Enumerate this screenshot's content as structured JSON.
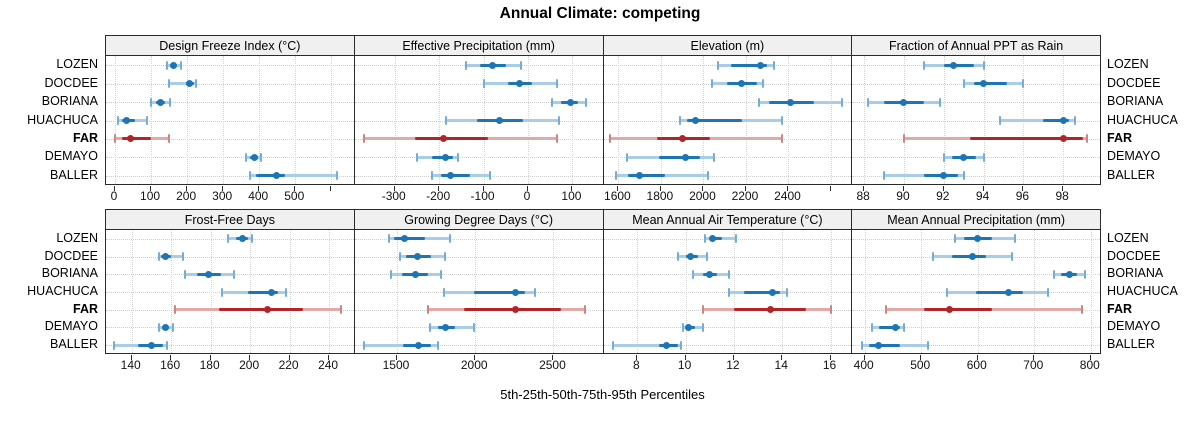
{
  "title": "Annual Climate: competing",
  "caption": "5th-25th-50th-75th-95th Percentiles",
  "percentile_labels": [
    "5th",
    "25th",
    "50th",
    "75th",
    "95th"
  ],
  "sites": [
    {
      "name": "LOZEN",
      "emphasis": false
    },
    {
      "name": "DOCDEE",
      "emphasis": false
    },
    {
      "name": "BORIANA",
      "emphasis": false
    },
    {
      "name": "HUACHUCA",
      "emphasis": false
    },
    {
      "name": "FAR",
      "emphasis": true
    },
    {
      "name": "DEMAYO",
      "emphasis": false
    },
    {
      "name": "BALLER",
      "emphasis": false
    }
  ],
  "colors": {
    "series_dark": "#1c75b4",
    "series_light": "#a9cde6",
    "series_cap": "#74aed8",
    "far_dark": "#b22428",
    "far_light": "#e2a9a9",
    "far_cap": "#d08383",
    "grid": "#d4d4d4",
    "strip_bg": "#f0f0f0",
    "panel_border": "#2b2b2b"
  },
  "chart_data": [
    {
      "type": "dot-interval",
      "title": "Design Freeze Index (°C)",
      "xlim": [
        -25,
        665
      ],
      "ticks": [
        0,
        100,
        200,
        300,
        400,
        500,
        600
      ],
      "tick_labels": [
        "0",
        "100",
        "200",
        "300",
        "400",
        "500",
        ""
      ],
      "series": [
        {
          "name": "LOZEN",
          "values": [
            145,
            153,
            162,
            171,
            182
          ]
        },
        {
          "name": "DOCDEE",
          "values": [
            150,
            196,
            208,
            220,
            226
          ]
        },
        {
          "name": "BORIANA",
          "values": [
            100,
            115,
            125,
            138,
            152
          ]
        },
        {
          "name": "HUACHUCA",
          "values": [
            8,
            18,
            33,
            55,
            90
          ]
        },
        {
          "name": "FAR",
          "values": [
            0,
            18,
            42,
            100,
            150
          ]
        },
        {
          "name": "DEMAYO",
          "values": [
            364,
            374,
            386,
            396,
            404
          ]
        },
        {
          "name": "BALLER",
          "values": [
            375,
            392,
            447,
            472,
            617
          ]
        }
      ]
    },
    {
      "type": "dot-interval",
      "title": "Effective Precipitation (mm)",
      "xlim": [
        -390,
        170
      ],
      "ticks": [
        -300,
        -200,
        -100,
        0,
        100
      ],
      "tick_labels": [
        "-300",
        "-200",
        "-100",
        "0",
        "100"
      ],
      "series": [
        {
          "name": "LOZEN",
          "values": [
            -140,
            -108,
            -80,
            -50,
            -15
          ]
        },
        {
          "name": "DOCDEE",
          "values": [
            -100,
            -45,
            -18,
            8,
            65
          ]
        },
        {
          "name": "BORIANA",
          "values": [
            55,
            75,
            95,
            112,
            130
          ]
        },
        {
          "name": "HUACHUCA",
          "values": [
            -185,
            -115,
            -65,
            -12,
            70
          ]
        },
        {
          "name": "FAR",
          "values": [
            -370,
            -255,
            -190,
            -90,
            65
          ]
        },
        {
          "name": "DEMAYO",
          "values": [
            -250,
            -215,
            -185,
            -168,
            -158
          ]
        },
        {
          "name": "BALLER",
          "values": [
            -215,
            -196,
            -175,
            -130,
            -85
          ]
        }
      ]
    },
    {
      "type": "dot-interval",
      "title": "Elevation (m)",
      "xlim": [
        1530,
        2700
      ],
      "ticks": [
        1600,
        1800,
        2000,
        2200,
        2400,
        2600
      ],
      "tick_labels": [
        "1600",
        "1800",
        "2000",
        "2200",
        "2400",
        ""
      ],
      "series": [
        {
          "name": "LOZEN",
          "values": [
            2070,
            2130,
            2270,
            2300,
            2330
          ]
        },
        {
          "name": "DOCDEE",
          "values": [
            2040,
            2110,
            2180,
            2250,
            2280
          ]
        },
        {
          "name": "BORIANA",
          "values": [
            2260,
            2310,
            2410,
            2520,
            2650
          ]
        },
        {
          "name": "HUACHUCA",
          "values": [
            1890,
            1925,
            1965,
            2180,
            2370
          ]
        },
        {
          "name": "FAR",
          "values": [
            1560,
            1780,
            1900,
            2030,
            2370
          ]
        },
        {
          "name": "DEMAYO",
          "values": [
            1640,
            1790,
            1915,
            1985,
            2050
          ]
        },
        {
          "name": "BALLER",
          "values": [
            1590,
            1645,
            1700,
            1820,
            2020
          ]
        }
      ]
    },
    {
      "type": "dot-interval",
      "title": "Fraction of Annual PPT as Rain",
      "xlim": [
        87.4,
        99.9
      ],
      "ticks": [
        88,
        90,
        92,
        94,
        96,
        98
      ],
      "tick_labels": [
        "88",
        "90",
        "92",
        "94",
        "96",
        "98"
      ],
      "series": [
        {
          "name": "LOZEN",
          "values": [
            91,
            92,
            92.5,
            93.5,
            94
          ]
        },
        {
          "name": "DOCDEE",
          "values": [
            93,
            93.5,
            94,
            95.2,
            96
          ]
        },
        {
          "name": "BORIANA",
          "values": [
            88.2,
            89,
            90,
            91,
            91.8
          ]
        },
        {
          "name": "HUACHUCA",
          "values": [
            94.8,
            97,
            98,
            98.3,
            98.6
          ]
        },
        {
          "name": "FAR",
          "values": [
            90,
            93.3,
            98,
            99,
            99.2
          ]
        },
        {
          "name": "DEMAYO",
          "values": [
            92,
            92.4,
            93,
            93.6,
            94
          ]
        },
        {
          "name": "BALLER",
          "values": [
            89,
            91,
            92,
            92.7,
            93
          ]
        }
      ]
    },
    {
      "type": "dot-interval",
      "title": "Frost-Free Days",
      "xlim": [
        127,
        253
      ],
      "ticks": [
        140,
        160,
        180,
        200,
        220,
        240
      ],
      "tick_labels": [
        "140",
        "160",
        "180",
        "200",
        "220",
        "240"
      ],
      "series": [
        {
          "name": "LOZEN",
          "values": [
            189,
            193,
            196,
            199,
            201
          ]
        },
        {
          "name": "DOCDEE",
          "values": [
            154,
            155,
            157,
            160,
            166
          ]
        },
        {
          "name": "BORIANA",
          "values": [
            167,
            173,
            179,
            185,
            192
          ]
        },
        {
          "name": "HUACHUCA",
          "values": [
            186,
            199,
            211,
            214,
            218
          ]
        },
        {
          "name": "FAR",
          "values": [
            162,
            184,
            209,
            227,
            246
          ]
        },
        {
          "name": "DEMAYO",
          "values": [
            154,
            156,
            157,
            159,
            161
          ]
        },
        {
          "name": "BALLER",
          "values": [
            131,
            143,
            150,
            156,
            158
          ]
        }
      ]
    },
    {
      "type": "dot-interval",
      "title": "Growing Degree Days (°C)",
      "xlim": [
        1230,
        2820
      ],
      "ticks": [
        1500,
        2000,
        2500
      ],
      "tick_labels": [
        "1500",
        "2000",
        "2500"
      ],
      "series": [
        {
          "name": "LOZEN",
          "values": [
            1450,
            1480,
            1545,
            1680,
            1840
          ]
        },
        {
          "name": "DOCDEE",
          "values": [
            1520,
            1560,
            1630,
            1720,
            1810
          ]
        },
        {
          "name": "BORIANA",
          "values": [
            1460,
            1530,
            1620,
            1700,
            1780
          ]
        },
        {
          "name": "HUACHUCA",
          "values": [
            1800,
            1990,
            2260,
            2320,
            2380
          ]
        },
        {
          "name": "FAR",
          "values": [
            1700,
            1930,
            2260,
            2550,
            2700
          ]
        },
        {
          "name": "DEMAYO",
          "values": [
            1710,
            1760,
            1810,
            1870,
            1990
          ]
        },
        {
          "name": "BALLER",
          "values": [
            1290,
            1540,
            1640,
            1720,
            1760
          ]
        }
      ]
    },
    {
      "type": "dot-interval",
      "title": "Mean Annual Air Temperature (°C)",
      "xlim": [
        6.6,
        16.9
      ],
      "ticks": [
        8,
        10,
        12,
        14,
        16
      ],
      "tick_labels": [
        "8",
        "10",
        "12",
        "14",
        "16"
      ],
      "series": [
        {
          "name": "LOZEN",
          "values": [
            10.8,
            11.0,
            11.1,
            11.5,
            12.1
          ]
        },
        {
          "name": "DOCDEE",
          "values": [
            9.7,
            10.0,
            10.2,
            10.5,
            10.9
          ]
        },
        {
          "name": "BORIANA",
          "values": [
            10.3,
            10.7,
            11.0,
            11.3,
            11.8
          ]
        },
        {
          "name": "HUACHUCA",
          "values": [
            11.8,
            12.4,
            13.6,
            13.9,
            14.2
          ]
        },
        {
          "name": "FAR",
          "values": [
            10.7,
            12.0,
            13.5,
            15.0,
            16.0
          ]
        },
        {
          "name": "DEMAYO",
          "values": [
            9.9,
            10.0,
            10.1,
            10.4,
            10.7
          ]
        },
        {
          "name": "BALLER",
          "values": [
            7.0,
            8.9,
            9.2,
            9.7,
            9.8
          ]
        }
      ]
    },
    {
      "type": "dot-interval",
      "title": "Mean Annual Precipitation (mm)",
      "xlim": [
        378,
        818
      ],
      "ticks": [
        400,
        500,
        600,
        700,
        800
      ],
      "tick_labels": [
        "400",
        "500",
        "600",
        "700",
        "800"
      ],
      "series": [
        {
          "name": "LOZEN",
          "values": [
            560,
            575,
            600,
            625,
            665
          ]
        },
        {
          "name": "DOCDEE",
          "values": [
            520,
            555,
            590,
            615,
            660
          ]
        },
        {
          "name": "BORIANA",
          "values": [
            735,
            747,
            762,
            775,
            790
          ]
        },
        {
          "name": "HUACHUCA",
          "values": [
            545,
            597,
            655,
            680,
            725
          ]
        },
        {
          "name": "FAR",
          "values": [
            437,
            505,
            550,
            625,
            785
          ]
        },
        {
          "name": "DEMAYO",
          "values": [
            413,
            426,
            455,
            462,
            470
          ]
        },
        {
          "name": "BALLER",
          "values": [
            395,
            408,
            425,
            462,
            512
          ]
        }
      ]
    }
  ],
  "layout_note": "2 rows x 4 columns trellis; FAR series highlighted in red"
}
